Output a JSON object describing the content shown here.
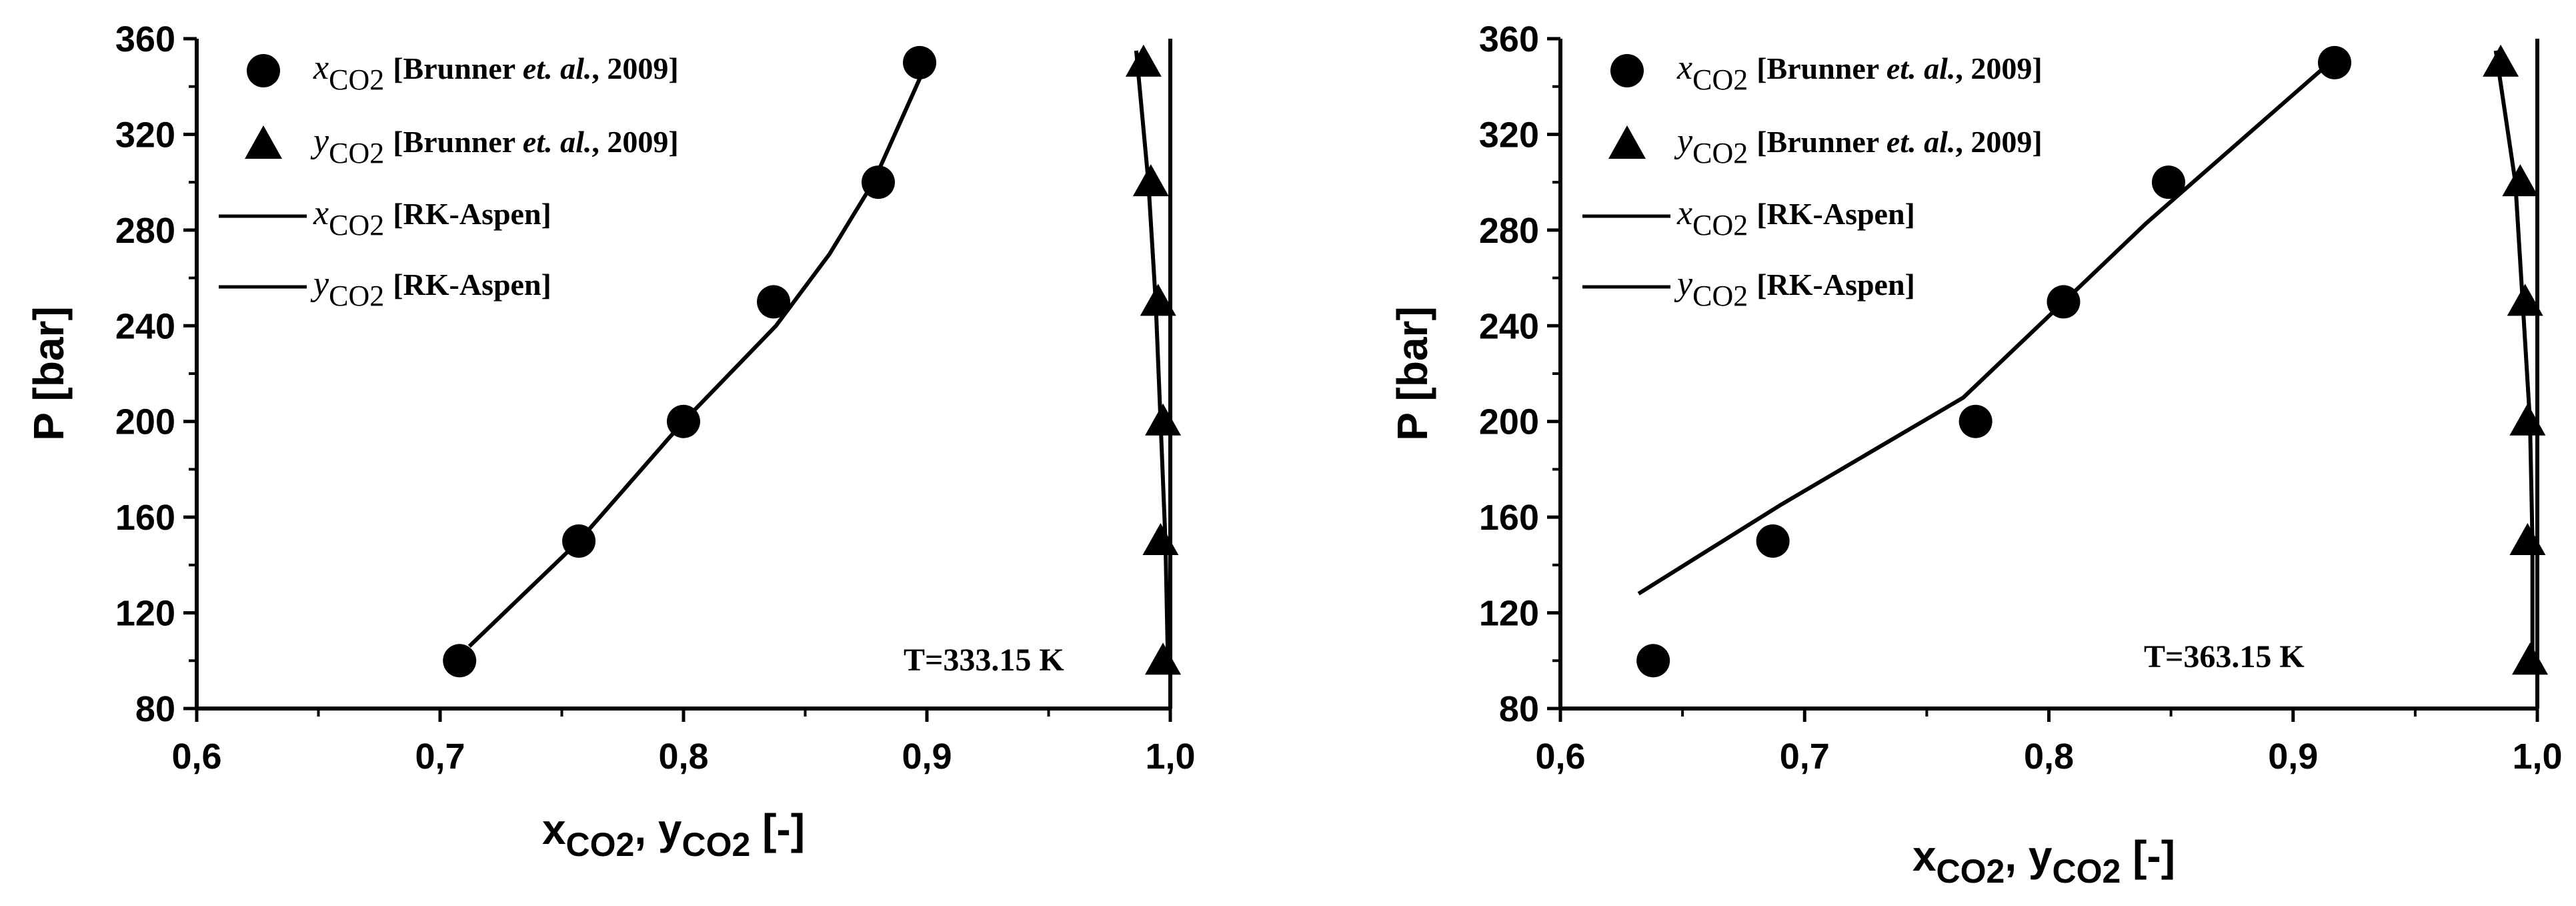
{
  "chart_data": [
    {
      "type": "scatter",
      "xlabel": "xCO2, yCO2 [-]",
      "xlabel_parts": {
        "var1": "x",
        "sub1": "CO2",
        "sep": ", ",
        "var2": "y",
        "sub2": "CO2",
        "unit": " [-]"
      },
      "ylabel": "P [bar]",
      "xlim": [
        0.6,
        1.0
      ],
      "ylim": [
        80,
        360
      ],
      "xticks": [
        0.6,
        0.7,
        0.8,
        0.9,
        1.0
      ],
      "xtick_labels": [
        "0,6",
        "0,7",
        "0,8",
        "0,9",
        "1,0"
      ],
      "yticks": [
        80,
        120,
        160,
        200,
        240,
        280,
        320,
        360
      ],
      "ytick_labels": [
        "80",
        "120",
        "160",
        "200",
        "240",
        "280",
        "320",
        "360"
      ],
      "grid": false,
      "legend_position": "top-left",
      "annotation": "T=333.15 K",
      "series": [
        {
          "name": "xCO2 [Brunner et. al., 2009]",
          "legend": {
            "var": "x",
            "sub": "CO2",
            "ref": "[Brunner ",
            "ital": "et. al.",
            "year": ", 2009]"
          },
          "kind": "marker",
          "marker": "circle",
          "x": [
            0.708,
            0.757,
            0.8,
            0.837,
            0.88,
            0.897
          ],
          "y": [
            100,
            150,
            200,
            250,
            300,
            350
          ]
        },
        {
          "name": "yCO2 [Brunner et. al., 2009]",
          "legend": {
            "var": "y",
            "sub": "CO2",
            "ref": "[Brunner ",
            "ital": "et. al.",
            "year": ", 2009]"
          },
          "kind": "marker",
          "marker": "triangle",
          "x": [
            0.997,
            0.996,
            0.997,
            0.995,
            0.992,
            0.989
          ],
          "y": [
            100,
            150,
            200,
            250,
            300,
            350
          ]
        },
        {
          "name": "xCO2 [RK-Aspen]",
          "legend": {
            "var": "x",
            "sub": "CO2",
            "ref": "[RK-Aspen]"
          },
          "kind": "line",
          "x": [
            0.712,
            0.757,
            0.8,
            0.838,
            0.86,
            0.878,
            0.9
          ],
          "y": [
            106,
            150,
            200,
            240,
            270,
            300,
            350
          ]
        },
        {
          "name": "yCO2 [RK-Aspen]",
          "legend": {
            "var": "y",
            "sub": "CO2",
            "ref": "[RK-Aspen]"
          },
          "kind": "line",
          "x": [
            0.999,
            0.998,
            0.996,
            0.994,
            0.991,
            0.986
          ],
          "y": [
            100,
            150,
            200,
            250,
            300,
            355
          ]
        }
      ]
    },
    {
      "type": "scatter",
      "xlabel": "xCO2, yCO2 [-]",
      "xlabel_parts": {
        "var1": "x",
        "sub1": "CO2",
        "sep": ", ",
        "var2": "y",
        "sub2": "CO2",
        "unit": " [-]"
      },
      "ylabel": "P [bar]",
      "xlim": [
        0.6,
        1.0
      ],
      "ylim": [
        80,
        360
      ],
      "xticks": [
        0.6,
        0.7,
        0.8,
        0.9,
        1.0
      ],
      "xtick_labels": [
        "0,6",
        "0,7",
        "0,8",
        "0,9",
        "1,0"
      ],
      "yticks": [
        80,
        120,
        160,
        200,
        240,
        280,
        320,
        360
      ],
      "ytick_labels": [
        "80",
        "120",
        "160",
        "200",
        "240",
        "280",
        "320",
        "360"
      ],
      "grid": false,
      "legend_position": "top-left",
      "annotation": "T=363.15 K",
      "series": [
        {
          "name": "xCO2 [Brunner et. al., 2009]",
          "legend": {
            "var": "x",
            "sub": "CO2",
            "ref": "[Brunner ",
            "ital": "et. al.",
            "year": ", 2009]"
          },
          "kind": "marker",
          "marker": "circle",
          "x": [
            0.638,
            0.687,
            0.77,
            0.806,
            0.849,
            0.917
          ],
          "y": [
            100,
            150,
            200,
            250,
            300,
            350
          ]
        },
        {
          "name": "yCO2 [Brunner et. al., 2009]",
          "legend": {
            "var": "y",
            "sub": "CO2",
            "ref": "[Brunner ",
            "ital": "et. al.",
            "year": ", 2009]"
          },
          "kind": "marker",
          "marker": "triangle",
          "x": [
            0.997,
            0.996,
            0.996,
            0.995,
            0.993,
            0.985
          ],
          "y": [
            100,
            150,
            200,
            250,
            300,
            350
          ]
        },
        {
          "name": "xCO2 [RK-Aspen]",
          "legend": {
            "var": "x",
            "sub": "CO2",
            "ref": "[RK-Aspen]"
          },
          "kind": "line",
          "x": [
            0.632,
            0.69,
            0.765,
            0.84,
            0.915
          ],
          "y": [
            128,
            165,
            210,
            283,
            350
          ]
        },
        {
          "name": "yCO2 [RK-Aspen]",
          "legend": {
            "var": "y",
            "sub": "CO2",
            "ref": "[RK-Aspen]"
          },
          "kind": "line",
          "x": [
            0.998,
            0.998,
            0.997,
            0.994,
            0.991,
            0.983
          ],
          "y": [
            100,
            150,
            200,
            250,
            300,
            355
          ]
        }
      ]
    }
  ]
}
